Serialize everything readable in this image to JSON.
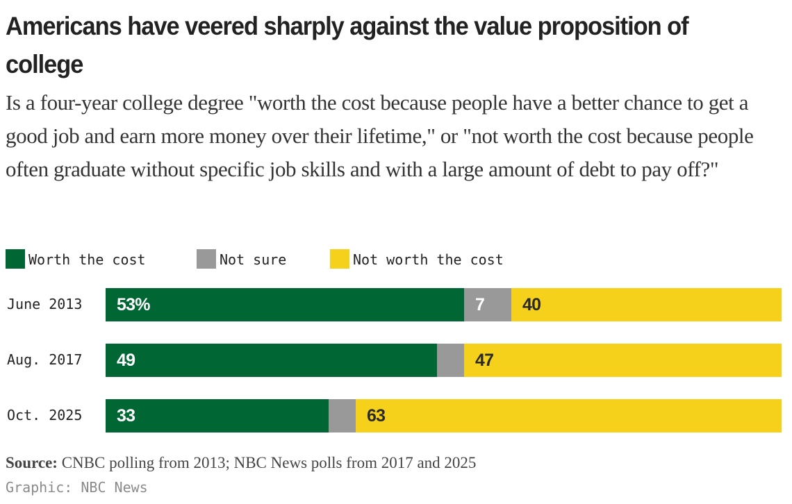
{
  "chart_data": {
    "type": "bar",
    "orientation": "horizontal",
    "stacked": true,
    "title": "Americans have veered sharply against the value proposition of college",
    "subtitle": "Is a four-year college degree \"worth the cost because people have a better chance to get a good job and earn more money over their lifetime,\" or \"not worth the cost because people often graduate without specific job skills and with a large amount of debt to pay off?\"",
    "categories": [
      "June 2013",
      "Aug. 2017",
      "Oct. 2025"
    ],
    "series": [
      {
        "name": "Worth the cost",
        "color": "#006633",
        "label_color": "#ffffff",
        "values": [
          53,
          49,
          33
        ],
        "labels": [
          "53%",
          "49",
          "33"
        ]
      },
      {
        "name": "Not sure",
        "color": "#999999",
        "label_color": "#ffffff",
        "values": [
          7,
          4,
          4
        ],
        "labels": [
          "7",
          "",
          ""
        ]
      },
      {
        "name": "Not worth the cost",
        "color": "#f5d11b",
        "label_color": "#2a2a2a",
        "values": [
          40,
          47,
          63
        ],
        "labels": [
          "40",
          "47",
          "63"
        ]
      }
    ],
    "xlim": [
      0,
      100
    ],
    "xlabel": "",
    "ylabel": "",
    "legend_position": "top-left",
    "grid": false
  },
  "source": {
    "label": "Source:",
    "text": " CNBC polling from 2013; NBC News polls from 2017 and 2025"
  },
  "credit": "Graphic: NBC News"
}
